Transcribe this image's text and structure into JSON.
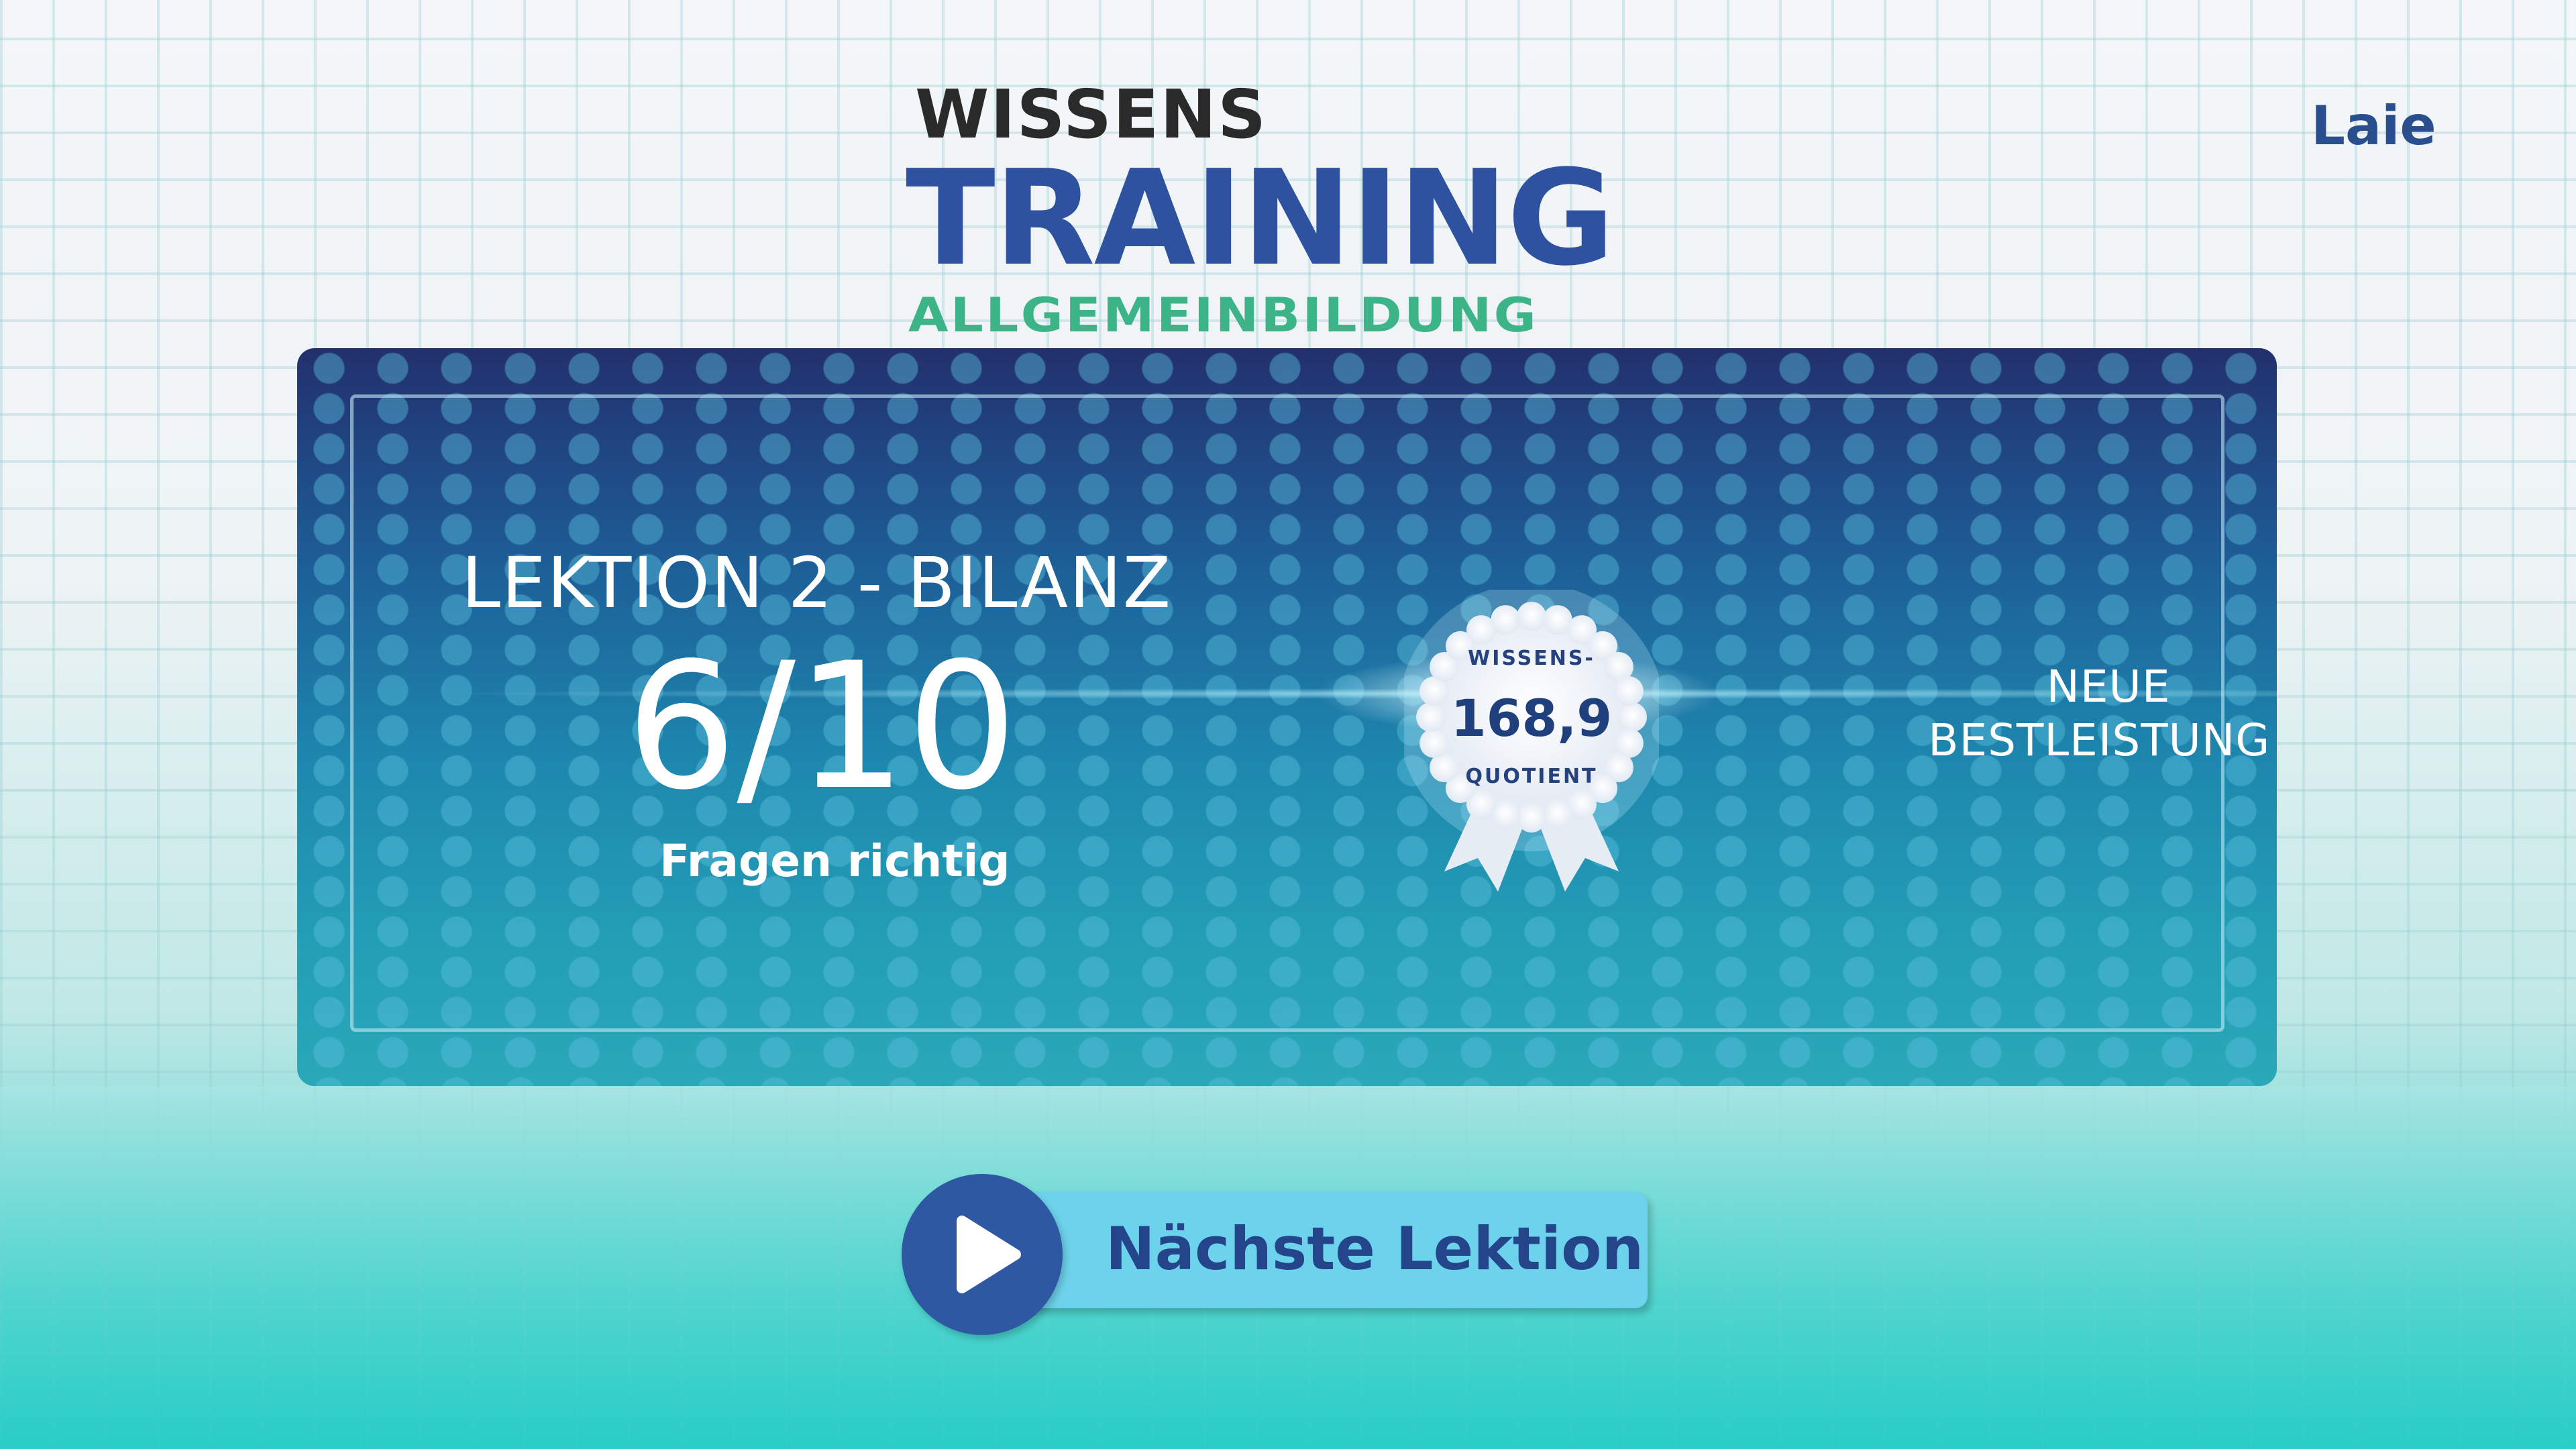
{
  "logo": {
    "line1": "WISSENS",
    "line2": "TRAINING",
    "line3": "ALLGEMEINBILDUNG"
  },
  "rank": "Laie",
  "result": {
    "title": "LEKTION 2 - BILANZ",
    "score": "6/10",
    "score_label": "Fragen richtig"
  },
  "badge": {
    "top_text": "WISSENS-",
    "value": "168,9",
    "bottom_text": "QUOTIENT"
  },
  "highlight": {
    "line1": "NEUE",
    "line2": "BESTLEISTUNG!"
  },
  "next_button": {
    "label": "Nächste Lektion",
    "icon": "play-icon"
  },
  "colors": {
    "brand_blue": "#2f52a0",
    "brand_green": "#3db487",
    "button": "#6dd3ec"
  }
}
